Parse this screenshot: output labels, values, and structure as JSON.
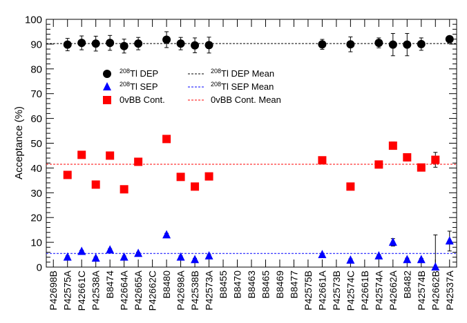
{
  "chart_data": {
    "type": "scatter",
    "ylabel": "Acceptance (%)",
    "xlabel": "",
    "ylim": [
      0,
      100
    ],
    "yticks": [
      0,
      10,
      20,
      30,
      40,
      50,
      60,
      70,
      80,
      90,
      100
    ],
    "grid": false,
    "categories": [
      "P42698B",
      "P42575A",
      "P42661C",
      "P42538A",
      "B8474",
      "P42664A",
      "P42665A",
      "P42662C",
      "B8480",
      "P42698A",
      "P42538B",
      "P42573A",
      "B8455",
      "B8470",
      "B8463",
      "B8465",
      "B8469",
      "B8477",
      "P42575B",
      "P42661A",
      "P42573B",
      "P42574C",
      "P42661B",
      "P42574A",
      "P42662A",
      "B8482",
      "P42574B",
      "P42662B",
      "P42537A"
    ],
    "legend": {
      "placement": "top-left",
      "markers": [
        {
          "sup": "208",
          "text": "Tl DEP",
          "marker": "circle",
          "color": "#000000"
        },
        {
          "sup": "208",
          "text": "Tl SEP",
          "marker": "triangle",
          "color": "#0000ff"
        },
        {
          "sup": "",
          "text": "0vBB Cont.",
          "marker": "square",
          "color": "#ff0000"
        }
      ],
      "lines": [
        {
          "sup": "208",
          "text": "Tl DEP Mean",
          "color": "#000000"
        },
        {
          "sup": "208",
          "text": "Tl SEP Mean",
          "color": "#0000ff"
        },
        {
          "sup": "",
          "text": "0vBB Cont. Mean",
          "color": "#ff0000"
        }
      ]
    },
    "series": [
      {
        "name": "208Tl DEP",
        "marker": "circle",
        "color": "#000000",
        "values": [
          null,
          89.8,
          90.5,
          90.2,
          90.5,
          89.2,
          90.2,
          null,
          91.8,
          90.2,
          89.5,
          89.6,
          null,
          null,
          null,
          null,
          null,
          null,
          null,
          89.9,
          null,
          89.9,
          null,
          90.5,
          89.8,
          89.8,
          90.0,
          null,
          92.0
        ],
        "errors": [
          null,
          2.5,
          2.8,
          3.0,
          3.0,
          2.8,
          2.5,
          null,
          3.2,
          2.5,
          3.0,
          3.2,
          null,
          null,
          null,
          null,
          null,
          null,
          null,
          2.0,
          null,
          3.0,
          null,
          2.0,
          4.5,
          4.5,
          2.5,
          null,
          1.2
        ],
        "mean": 90.2
      },
      {
        "name": "208Tl SEP",
        "marker": "triangle",
        "color": "#0000ff",
        "values": [
          null,
          4.0,
          6.3,
          3.6,
          6.9,
          4.0,
          5.5,
          null,
          13.0,
          4.0,
          3.0,
          4.5,
          null,
          null,
          null,
          null,
          null,
          null,
          null,
          5.0,
          null,
          2.8,
          null,
          4.5,
          10.0,
          3.0,
          3.0,
          0.0,
          10.5
        ],
        "errors": [
          null,
          0.5,
          0.5,
          0.5,
          0.5,
          0.5,
          0.5,
          null,
          0.6,
          0.5,
          0.5,
          0.5,
          null,
          null,
          null,
          null,
          null,
          null,
          null,
          0.5,
          null,
          0.5,
          null,
          0.5,
          1.5,
          0.6,
          0.5,
          13.0,
          4.0
        ],
        "mean": 5.5
      },
      {
        "name": "0vBB Cont.",
        "marker": "square",
        "color": "#ff0000",
        "values": [
          null,
          37.2,
          45.3,
          33.3,
          45.0,
          31.4,
          42.5,
          null,
          51.7,
          36.4,
          32.5,
          36.6,
          null,
          null,
          null,
          null,
          null,
          null,
          null,
          43.1,
          null,
          32.5,
          null,
          41.4,
          49.0,
          44.3,
          40.2,
          43.3,
          null
        ],
        "errors": [
          null,
          0.8,
          0.8,
          0.8,
          0.8,
          0.8,
          0.8,
          null,
          1.3,
          0.8,
          0.8,
          0.8,
          null,
          null,
          null,
          null,
          null,
          null,
          null,
          0.8,
          null,
          0.8,
          null,
          0.8,
          1.5,
          1.5,
          0.8,
          3.0,
          null
        ],
        "mean": 41.5
      }
    ]
  }
}
